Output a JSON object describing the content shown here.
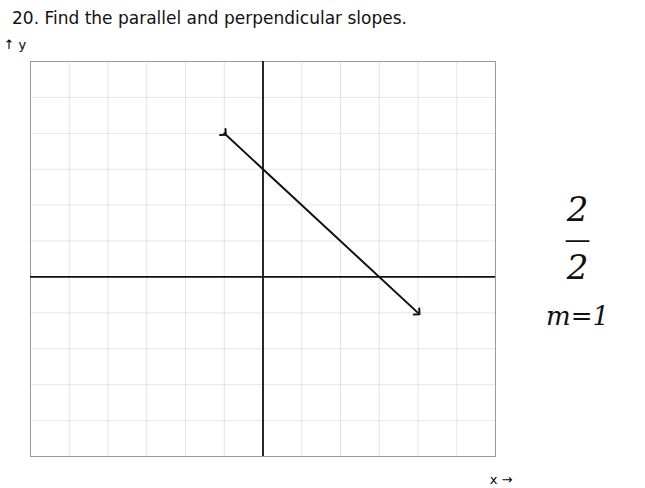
{
  "chart_data": {
    "type": "line",
    "title": "20. Find the parallel and perpendicular slopes.",
    "x_label": "x",
    "y_label": "y",
    "x": [
      -1,
      4
    ],
    "series": [
      {
        "values": [
          4,
          -1
        ],
        "color": "#111111"
      }
    ],
    "xlim": [
      -6,
      6
    ],
    "ylim": [
      -5,
      6
    ],
    "xticks": [
      -6,
      -5,
      -4,
      -3,
      -2,
      -1,
      0,
      1,
      2,
      3,
      4,
      5,
      6
    ],
    "yticks": [
      -5,
      -4,
      -3,
      -2,
      -1,
      0,
      1,
      2,
      3,
      4,
      5,
      6
    ],
    "grid": true,
    "tick_labels": false,
    "annotations": [
      "2",
      "—",
      "2",
      "m=1"
    ]
  }
}
